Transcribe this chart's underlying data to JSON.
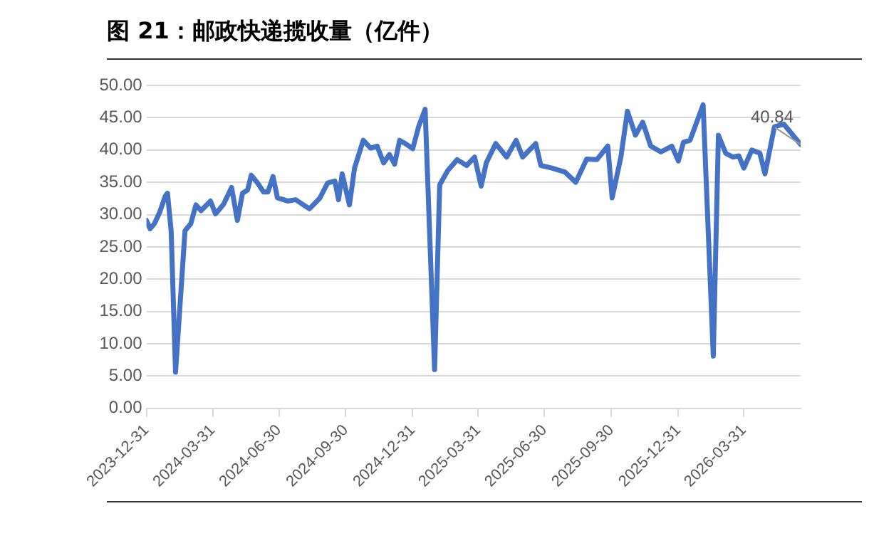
{
  "chart_data": {
    "type": "line",
    "title": "图 21：邮政快递揽收量（亿件）",
    "x": [
      "2023-12-31",
      "2024-01-05",
      "2024-01-11",
      "2024-01-18",
      "2024-01-26",
      "2024-01-29",
      "2024-02-03",
      "2024-02-09",
      "2024-02-22",
      "2024-03-01",
      "2024-03-08",
      "2024-03-15",
      "2024-03-28",
      "2024-04-04",
      "2024-04-15",
      "2024-04-26",
      "2024-05-04",
      "2024-05-11",
      "2024-05-18",
      "2024-05-23",
      "2024-05-31",
      "2024-06-09",
      "2024-06-15",
      "2024-06-22",
      "2024-06-28",
      "2024-07-12",
      "2024-07-23",
      "2024-08-11",
      "2024-08-25",
      "2024-09-05",
      "2024-09-15",
      "2024-09-20",
      "2024-09-25",
      "2024-10-05",
      "2024-10-12",
      "2024-10-24",
      "2024-11-03",
      "2024-11-12",
      "2024-11-21",
      "2024-11-29",
      "2024-12-06",
      "2024-12-13",
      "2024-12-22",
      "2024-12-31",
      "2025-01-08",
      "2025-01-17",
      "2025-01-30",
      "2025-02-06",
      "2025-02-17",
      "2025-03-02",
      "2025-03-15",
      "2025-03-26",
      "2025-04-04",
      "2025-04-11",
      "2025-04-24",
      "2025-05-09",
      "2025-05-22",
      "2025-05-31",
      "2025-06-18",
      "2025-06-25",
      "2025-07-10",
      "2025-07-28",
      "2025-08-12",
      "2025-08-27",
      "2025-09-10",
      "2025-09-25",
      "2025-10-01",
      "2025-10-13",
      "2025-10-22",
      "2025-11-02",
      "2025-11-12",
      "2025-11-23",
      "2025-12-07",
      "2025-12-22",
      "2025-12-31",
      "2026-01-07",
      "2026-01-16",
      "2026-02-03",
      "2026-02-17",
      "2026-02-24",
      "2026-03-06",
      "2026-03-16",
      "2026-03-24",
      "2026-03-31",
      "2026-04-11",
      "2026-04-22",
      "2026-04-29",
      "2026-05-12",
      "2026-05-25",
      "2026-06-02",
      "2026-06-17"
    ],
    "series": [
      {
        "color": "#4472c4",
        "values": [
          29.1,
          27.8,
          28.6,
          30.3,
          32.9,
          33.3,
          27.4,
          5.6,
          27.5,
          28.6,
          31.5,
          30.6,
          32.1,
          30.1,
          31.6,
          34.2,
          29.1,
          33.3,
          33.8,
          36.1,
          35.0,
          33.5,
          33.5,
          35.9,
          32.6,
          32.1,
          32.3,
          30.9,
          32.5,
          34.9,
          35.2,
          32.3,
          36.3,
          31.5,
          37.2,
          41.5,
          40.3,
          40.6,
          38.0,
          39.3,
          37.8,
          41.5,
          40.9,
          40.2,
          43.6,
          46.3,
          6.0,
          34.6,
          36.8,
          38.5,
          37.6,
          38.9,
          34.4,
          38.0,
          41.0,
          38.9,
          41.5,
          38.9,
          41.0,
          37.6,
          37.2,
          36.6,
          35.0,
          38.6,
          38.5,
          40.6,
          32.6,
          38.9,
          46.0,
          42.3,
          44.3,
          40.6,
          39.7,
          40.6,
          38.3,
          41.2,
          41.5,
          47.0,
          8.1,
          42.3,
          39.5,
          38.9,
          39.1,
          37.2,
          40.0,
          39.5,
          36.3,
          43.6,
          44.0,
          42.9,
          40.84
        ]
      }
    ],
    "xlim": [
      "2023-12-31",
      "2026-06-17"
    ],
    "xticks": [
      "2023-12-31",
      "2024-03-31",
      "2024-06-30",
      "2024-09-30",
      "2024-12-31",
      "2025-03-31",
      "2025-06-30",
      "2025-09-30",
      "2025-12-31",
      "2026-03-31"
    ],
    "ylim": [
      0,
      50
    ],
    "yticks": [
      {
        "value": 0,
        "label": "0.00"
      },
      {
        "value": 5,
        "label": "5.00"
      },
      {
        "value": 10,
        "label": "10.00"
      },
      {
        "value": 15,
        "label": "15.00"
      },
      {
        "value": 20,
        "label": "20.00"
      },
      {
        "value": 25,
        "label": "25.00"
      },
      {
        "value": 30,
        "label": "30.00"
      },
      {
        "value": 35,
        "label": "35.00"
      },
      {
        "value": 40,
        "label": "40.00"
      },
      {
        "value": 45,
        "label": "45.00"
      },
      {
        "value": 50,
        "label": "50.00"
      }
    ],
    "grid": "y",
    "legend": false,
    "marker": "none",
    "line_style": "solid",
    "annotations": [
      {
        "text": "40.84",
        "x": "2026-06-17",
        "y": 40.84
      }
    ]
  }
}
